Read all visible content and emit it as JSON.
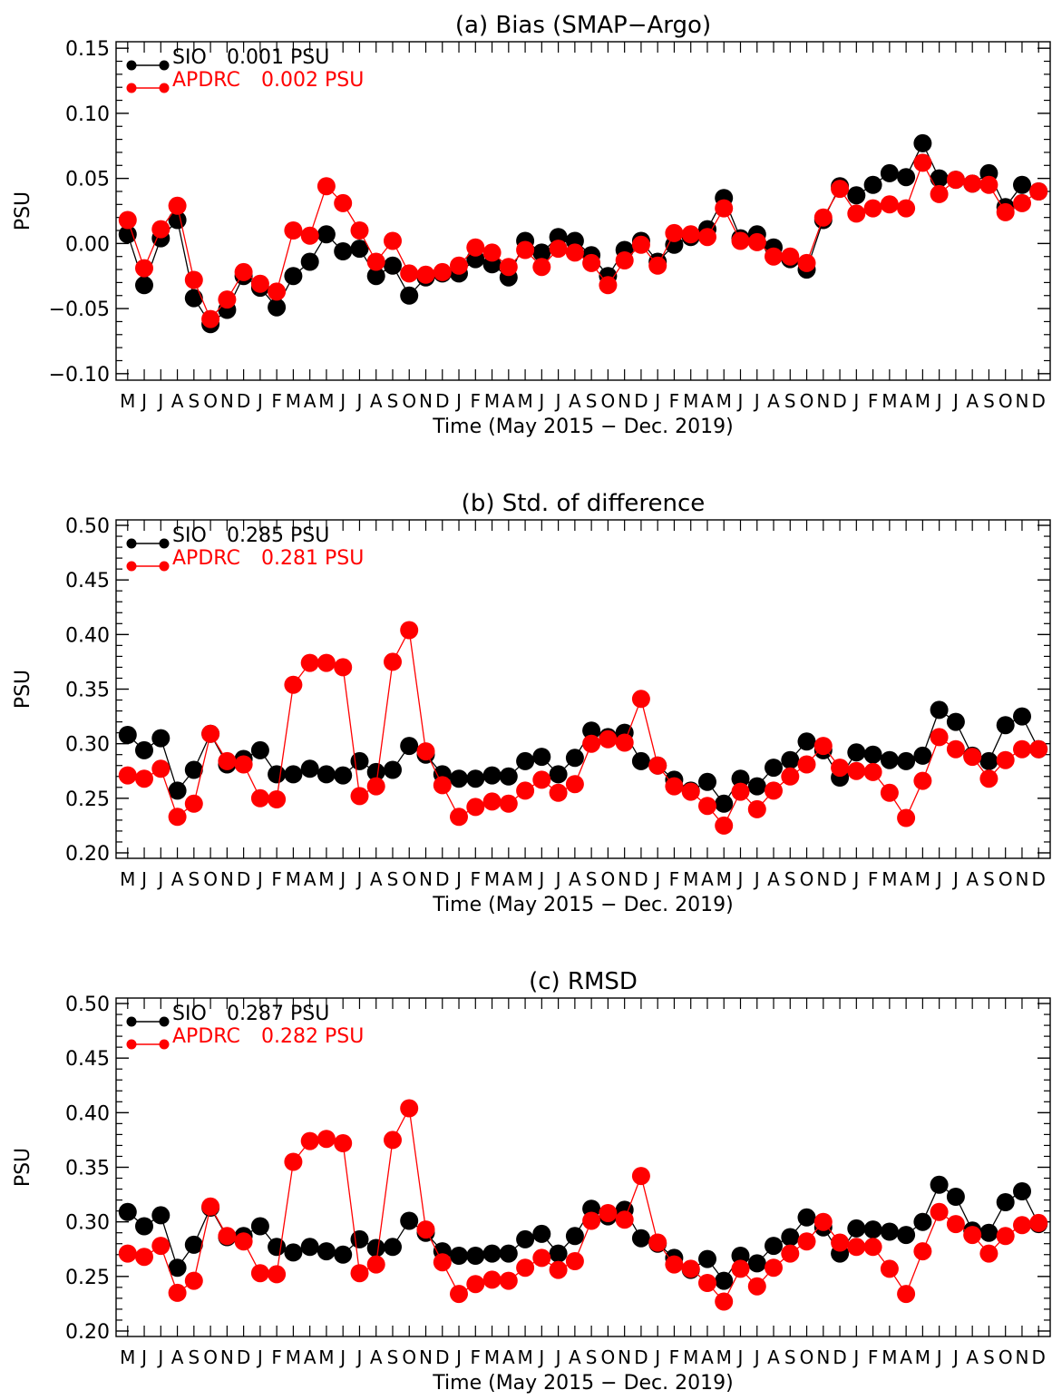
{
  "figure": {
    "months": [
      "M",
      "J",
      "J",
      "A",
      "S",
      "O",
      "N",
      "D",
      "J",
      "F",
      "M",
      "A",
      "M",
      "J",
      "J",
      "A",
      "S",
      "O",
      "N",
      "D",
      "J",
      "F",
      "M",
      "A",
      "M",
      "J",
      "J",
      "A",
      "S",
      "O",
      "N",
      "D",
      "J",
      "F",
      "M",
      "A",
      "M",
      "J",
      "J",
      "A",
      "S",
      "O",
      "N",
      "D",
      "J",
      "F",
      "M",
      "A",
      "M",
      "J",
      "J",
      "A",
      "S",
      "O",
      "N",
      "D"
    ],
    "colors": {
      "SIO": "#000000",
      "APDRC": "#ff0000"
    }
  },
  "chart_data": [
    {
      "type": "line",
      "title": "(a) Bias (SMAP−Argo)",
      "xlabel": "Time (May 2015 − Dec. 2019)",
      "ylabel": "PSU",
      "ylim": [
        -0.105,
        0.155
      ],
      "yticks": [
        -0.1,
        -0.05,
        0.0,
        0.05,
        0.1,
        0.15
      ],
      "ytick_labels": [
        "−0.10",
        "−0.05",
        "0.00",
        "0.05",
        "0.10",
        "0.15"
      ],
      "legend_position": "top-left",
      "series": [
        {
          "name": "SIO",
          "legend_value": "0.001 PSU",
          "values": [
            0.007,
            -0.032,
            0.004,
            0.018,
            -0.042,
            -0.062,
            -0.051,
            -0.025,
            -0.034,
            -0.049,
            -0.025,
            -0.014,
            0.007,
            -0.006,
            -0.004,
            -0.025,
            -0.017,
            -0.04,
            -0.026,
            -0.023,
            -0.023,
            -0.012,
            -0.016,
            -0.026,
            0.002,
            -0.007,
            0.005,
            0.002,
            -0.009,
            -0.025,
            -0.005,
            0.002,
            -0.014,
            -0.001,
            0.005,
            0.011,
            0.035,
            0.004,
            0.007,
            -0.003,
            -0.012,
            -0.02,
            0.018,
            0.044,
            0.037,
            0.045,
            0.054,
            0.051,
            0.077,
            0.05,
            0.049,
            0.046,
            0.054,
            0.028,
            0.045,
            0.04
          ]
        },
        {
          "name": "APDRC",
          "legend_value": "0.002 PSU",
          "values": [
            0.018,
            -0.019,
            0.011,
            0.029,
            -0.028,
            -0.058,
            -0.043,
            -0.022,
            -0.031,
            -0.037,
            0.01,
            0.006,
            0.044,
            0.031,
            0.01,
            -0.014,
            0.002,
            -0.023,
            -0.024,
            -0.022,
            -0.017,
            -0.003,
            -0.007,
            -0.018,
            -0.005,
            -0.018,
            -0.004,
            -0.007,
            -0.015,
            -0.032,
            -0.013,
            -0.001,
            -0.017,
            0.008,
            0.007,
            0.005,
            0.027,
            0.002,
            0.001,
            -0.01,
            -0.01,
            -0.015,
            0.02,
            0.042,
            0.023,
            0.027,
            0.03,
            0.027,
            0.062,
            0.038,
            0.049,
            0.046,
            0.045,
            0.024,
            0.031,
            0.04
          ]
        }
      ]
    },
    {
      "type": "line",
      "title": "(b) Std. of difference",
      "xlabel": "Time (May 2015 − Dec. 2019)",
      "ylabel": "PSU",
      "ylim": [
        0.195,
        0.505
      ],
      "yticks": [
        0.2,
        0.25,
        0.3,
        0.35,
        0.4,
        0.45,
        0.5
      ],
      "ytick_labels": [
        "0.20",
        "0.25",
        "0.30",
        "0.35",
        "0.40",
        "0.45",
        "0.50"
      ],
      "legend_position": "top-left",
      "series": [
        {
          "name": "SIO",
          "legend_value": "0.285 PSU",
          "values": [
            0.308,
            0.294,
            0.305,
            0.257,
            0.276,
            0.309,
            0.281,
            0.286,
            0.294,
            0.272,
            0.272,
            0.277,
            0.272,
            0.271,
            0.284,
            0.274,
            0.276,
            0.298,
            0.29,
            0.272,
            0.268,
            0.268,
            0.271,
            0.27,
            0.284,
            0.288,
            0.272,
            0.287,
            0.312,
            0.306,
            0.31,
            0.284,
            0.28,
            0.267,
            0.257,
            0.265,
            0.245,
            0.268,
            0.261,
            0.278,
            0.285,
            0.302,
            0.294,
            0.269,
            0.292,
            0.29,
            0.285,
            0.284,
            0.289,
            0.331,
            0.32,
            0.289,
            0.284,
            0.317,
            0.325,
            0.295
          ]
        },
        {
          "name": "APDRC",
          "legend_value": "0.281 PSU",
          "values": [
            0.271,
            0.268,
            0.277,
            0.233,
            0.245,
            0.309,
            0.284,
            0.281,
            0.25,
            0.249,
            0.354,
            0.374,
            0.374,
            0.37,
            0.252,
            0.261,
            0.375,
            0.404,
            0.293,
            0.262,
            0.233,
            0.242,
            0.247,
            0.245,
            0.257,
            0.267,
            0.255,
            0.263,
            0.3,
            0.304,
            0.301,
            0.341,
            0.28,
            0.261,
            0.256,
            0.243,
            0.225,
            0.256,
            0.24,
            0.257,
            0.27,
            0.281,
            0.298,
            0.278,
            0.275,
            0.274,
            0.255,
            0.232,
            0.266,
            0.306,
            0.295,
            0.288,
            0.268,
            0.285,
            0.295,
            0.295
          ]
        }
      ]
    },
    {
      "type": "line",
      "title": "(c) RMSD",
      "xlabel": "Time (May 2015 − Dec. 2019)",
      "ylabel": "PSU",
      "ylim": [
        0.195,
        0.505
      ],
      "yticks": [
        0.2,
        0.25,
        0.3,
        0.35,
        0.4,
        0.45,
        0.5
      ],
      "ytick_labels": [
        "0.20",
        "0.25",
        "0.30",
        "0.35",
        "0.40",
        "0.45",
        "0.50"
      ],
      "legend_position": "top-left",
      "series": [
        {
          "name": "SIO",
          "legend_value": "0.287 PSU",
          "values": [
            0.309,
            0.296,
            0.306,
            0.258,
            0.279,
            0.313,
            0.286,
            0.287,
            0.296,
            0.277,
            0.272,
            0.277,
            0.273,
            0.27,
            0.284,
            0.276,
            0.277,
            0.301,
            0.29,
            0.273,
            0.269,
            0.269,
            0.271,
            0.271,
            0.284,
            0.289,
            0.271,
            0.287,
            0.312,
            0.305,
            0.311,
            0.285,
            0.28,
            0.267,
            0.256,
            0.266,
            0.246,
            0.269,
            0.262,
            0.278,
            0.286,
            0.304,
            0.295,
            0.271,
            0.294,
            0.293,
            0.291,
            0.288,
            0.3,
            0.334,
            0.323,
            0.292,
            0.29,
            0.318,
            0.328,
            0.298
          ]
        },
        {
          "name": "APDRC",
          "legend_value": "0.282 PSU",
          "values": [
            0.271,
            0.268,
            0.278,
            0.235,
            0.246,
            0.314,
            0.287,
            0.282,
            0.253,
            0.252,
            0.355,
            0.374,
            0.376,
            0.372,
            0.253,
            0.261,
            0.375,
            0.404,
            0.293,
            0.263,
            0.234,
            0.243,
            0.247,
            0.246,
            0.258,
            0.267,
            0.256,
            0.264,
            0.301,
            0.308,
            0.302,
            0.342,
            0.281,
            0.261,
            0.257,
            0.244,
            0.227,
            0.257,
            0.241,
            0.258,
            0.271,
            0.282,
            0.3,
            0.281,
            0.277,
            0.277,
            0.257,
            0.234,
            0.273,
            0.309,
            0.298,
            0.288,
            0.271,
            0.287,
            0.297,
            0.299
          ]
        }
      ]
    }
  ]
}
